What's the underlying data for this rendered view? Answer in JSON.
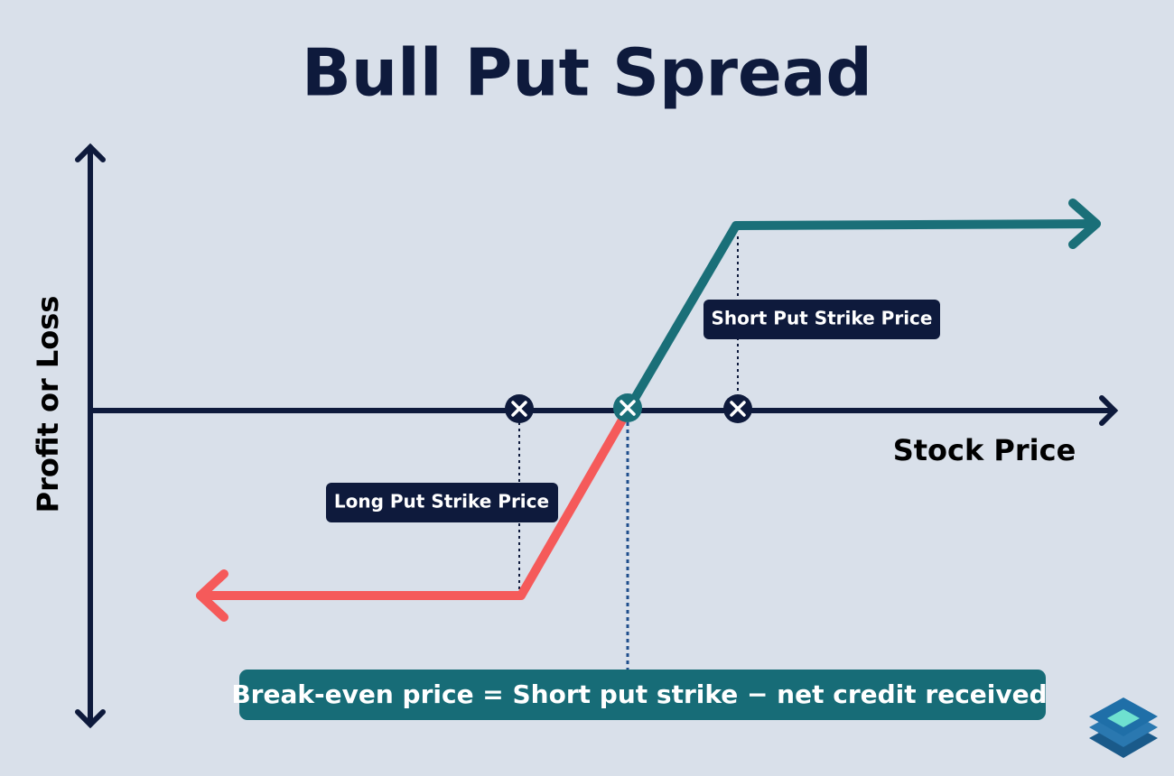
{
  "header": {
    "title": "Bull Put Spread"
  },
  "axes": {
    "y_label": "Profit or Loss",
    "x_label": "Stock Price"
  },
  "labels": {
    "short_put": "Short Put Strike Price",
    "long_put": "Long Put Strike Price"
  },
  "footer": {
    "formula": "Break-even price = Short put strike − net credit received"
  }
}
